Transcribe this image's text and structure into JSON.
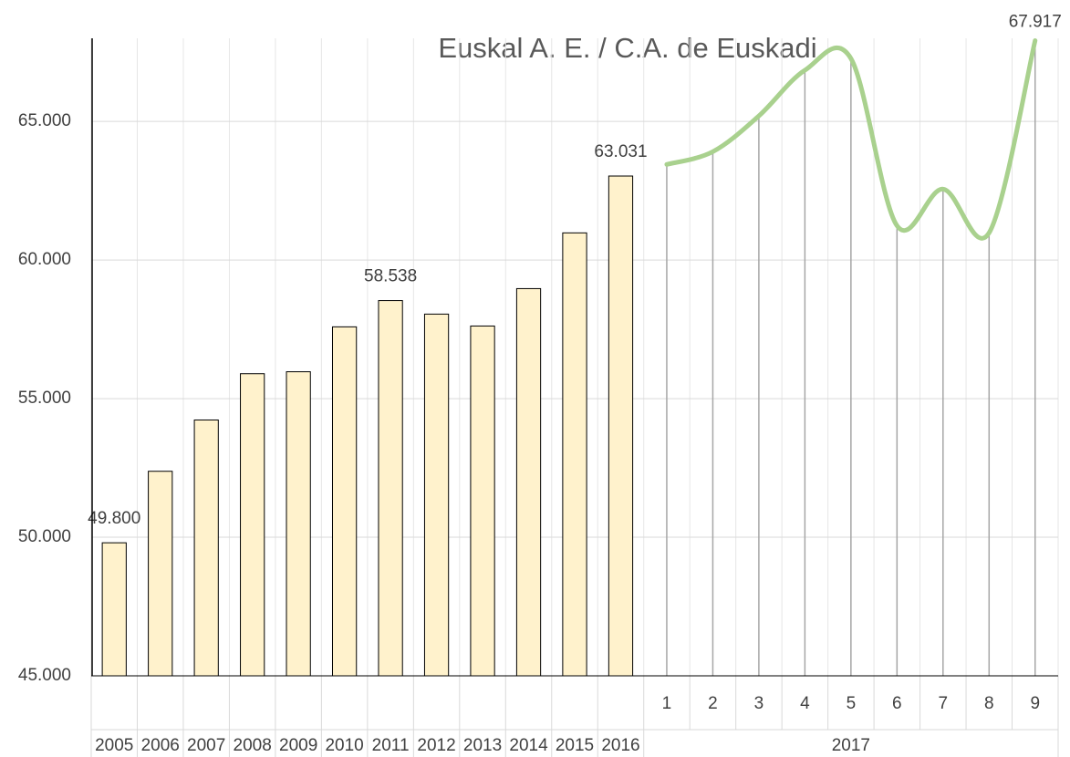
{
  "chart_data": {
    "type": "bar-line",
    "title": "Euskal A. E. / C.A. de Euskadi",
    "categories": [
      "2005",
      "2006",
      "2007",
      "2008",
      "2009",
      "2010",
      "2011",
      "2012",
      "2013",
      "2014",
      "2015",
      "2016",
      "1",
      "2",
      "3",
      "4",
      "5",
      "6",
      "7",
      "8",
      "9"
    ],
    "category_group": "2017",
    "series": [
      {
        "type": "bar",
        "color": "#fff2cc",
        "values": [
          49800,
          52380,
          54230,
          55900,
          55970,
          57590,
          58538,
          58050,
          57620,
          58970,
          60980,
          63031,
          null,
          null,
          null,
          null,
          null,
          null,
          null,
          null,
          null
        ],
        "value_labels": [
          "49.800",
          null,
          null,
          null,
          null,
          null,
          "58.538",
          null,
          null,
          null,
          null,
          "63.031",
          null,
          null,
          null,
          null,
          null,
          null,
          null,
          null,
          null
        ]
      },
      {
        "type": "line",
        "color": "#a9d18e",
        "values": [
          null,
          null,
          null,
          null,
          null,
          null,
          null,
          null,
          null,
          null,
          null,
          null,
          63450,
          63910,
          65200,
          66850,
          67270,
          61240,
          62560,
          60980,
          67917
        ],
        "value_labels": [
          null,
          null,
          null,
          null,
          null,
          null,
          null,
          null,
          null,
          null,
          null,
          null,
          null,
          null,
          null,
          null,
          null,
          null,
          null,
          null,
          "67.917"
        ]
      }
    ],
    "ylim": [
      45000,
      68000
    ],
    "yticks": [
      {
        "value": 45000,
        "label": "45.000"
      },
      {
        "value": 50000,
        "label": "50.000"
      },
      {
        "value": 55000,
        "label": "55.000"
      },
      {
        "value": 60000,
        "label": "60.000"
      },
      {
        "value": 65000,
        "label": "65.000"
      }
    ],
    "grid": true
  }
}
